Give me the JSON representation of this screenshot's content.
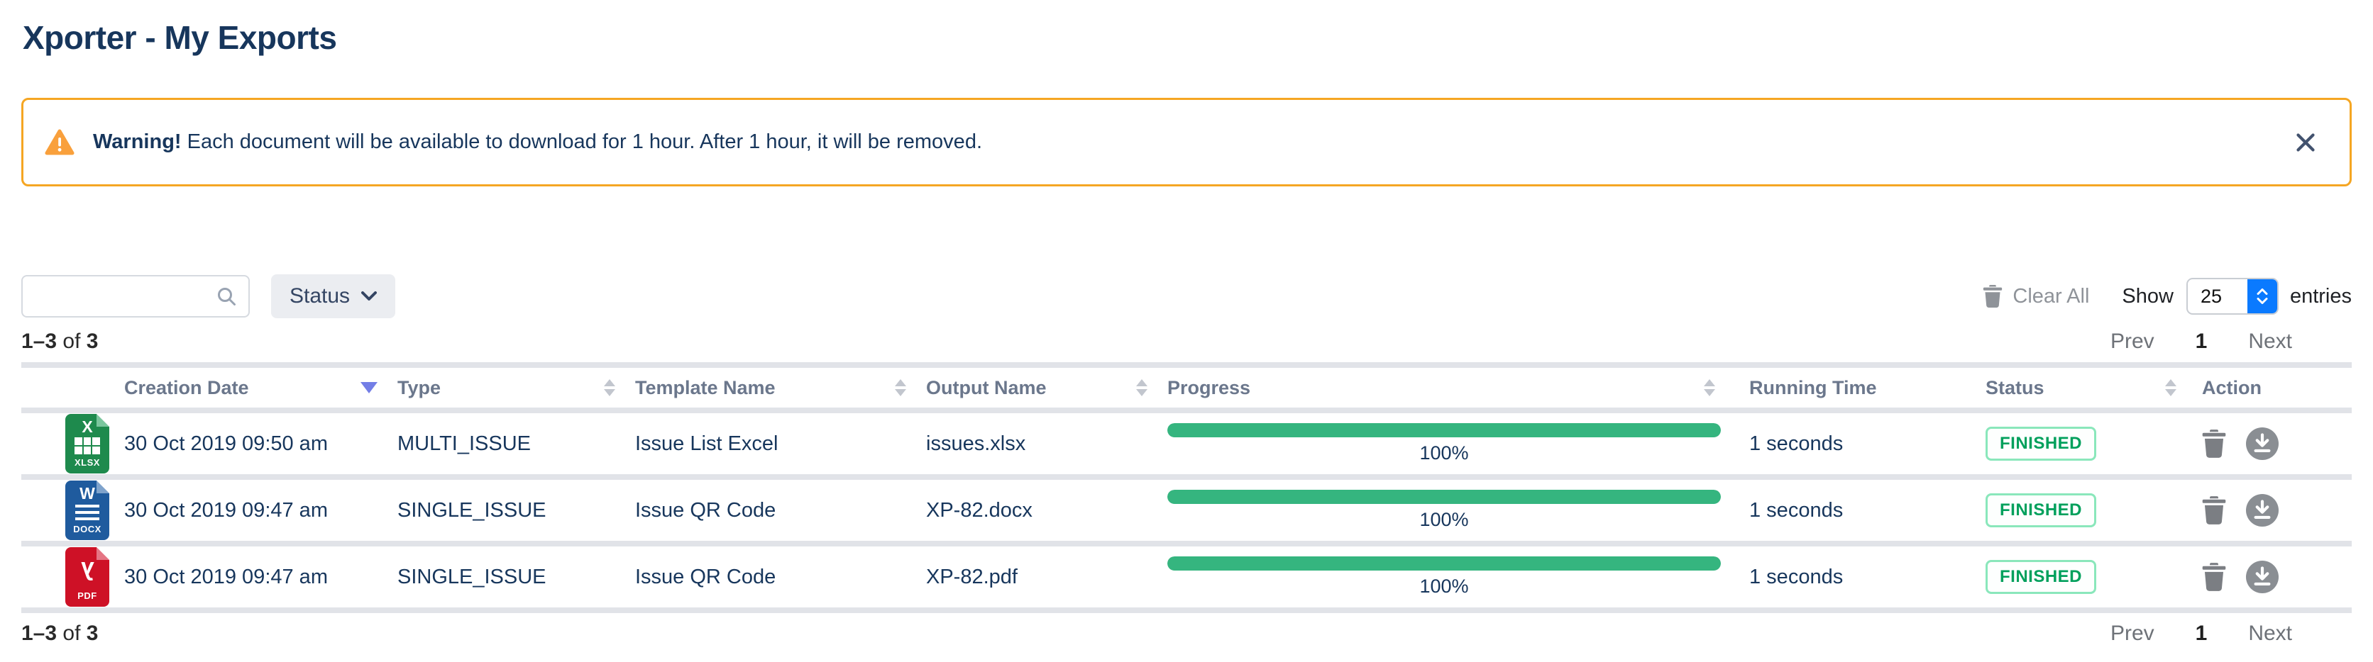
{
  "page": {
    "title": "Xporter - My Exports"
  },
  "banner": {
    "bold": "Warning!",
    "message": " Each document will be available to download for 1 hour. After 1 hour, it will be removed."
  },
  "toolbar": {
    "search_value": "",
    "search_placeholder": "",
    "status_label": "Status",
    "clear_all_label": "Clear All",
    "show_label": "Show",
    "page_size": "25",
    "entries_label": "entries"
  },
  "results": {
    "range": "1–3",
    "of_label": " of ",
    "total": "3"
  },
  "pager": {
    "prev_label": "Prev",
    "current_page": "1",
    "next_label": "Next"
  },
  "table": {
    "columns": [
      {
        "label": "Creation Date",
        "sort": "desc"
      },
      {
        "label": "Type",
        "sort": "both"
      },
      {
        "label": "Template Name",
        "sort": "both"
      },
      {
        "label": "Output Name",
        "sort": "both"
      },
      {
        "label": "Progress",
        "sort": "both"
      },
      {
        "label": "Running Time",
        "sort": "none"
      },
      {
        "label": "Status",
        "sort": "both"
      },
      {
        "label": "Action",
        "sort": "none"
      }
    ],
    "rows": [
      {
        "kind": "xlsx",
        "icon": "excel-file-icon",
        "letter": "X",
        "file_label": "XLSX",
        "creation_date": "30 Oct 2019 09:50 am",
        "type": "MULTI_ISSUE",
        "template_name": "Issue List Excel",
        "output_name": "issues.xlsx",
        "progress_percent": 100,
        "progress_label": "100%",
        "running_time": "1 seconds",
        "status": "FINISHED"
      },
      {
        "kind": "docx",
        "icon": "word-file-icon",
        "letter": "W",
        "file_label": "DOCX",
        "creation_date": "30 Oct 2019 09:47 am",
        "type": "SINGLE_ISSUE",
        "template_name": "Issue QR Code",
        "output_name": "XP-82.docx",
        "progress_percent": 100,
        "progress_label": "100%",
        "running_time": "1 seconds",
        "status": "FINISHED"
      },
      {
        "kind": "pdf",
        "icon": "pdf-file-icon",
        "letter": "",
        "file_label": "PDF",
        "creation_date": "30 Oct 2019 09:47 am",
        "type": "SINGLE_ISSUE",
        "template_name": "Issue QR Code",
        "output_name": "XP-82.pdf",
        "progress_percent": 100,
        "progress_label": "100%",
        "running_time": "1 seconds",
        "status": "FINISHED"
      }
    ]
  },
  "icons": {
    "pdf_glyph": "λ"
  },
  "colors": {
    "title_navy": "#17365C",
    "warning_orange": "#F5A623",
    "progress_green": "#35B57F",
    "status_green": "#00A05C",
    "status_border_green": "#8AE7BB",
    "select_blue": "#0A7AFF",
    "header_gray": "#6B778C",
    "divider_gray": "#E1E3E8",
    "sort_active_indigo": "#737EE6",
    "excel_green": "#1E8A4D",
    "word_blue": "#1F5B9E",
    "pdf_red": "#CE1126"
  }
}
